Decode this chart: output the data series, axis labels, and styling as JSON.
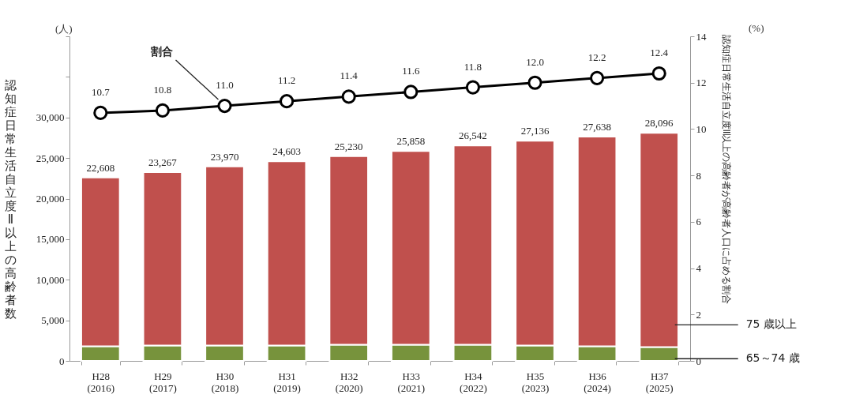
{
  "chart_data": {
    "type": "bar",
    "stacked": true,
    "categories": [
      "H28\n(2016)",
      "H29\n(2017)",
      "H30\n(2018)",
      "H31\n(2019)",
      "H32\n(2020)",
      "H33\n(2021)",
      "H34\n(2022)",
      "H35\n(2023)",
      "H36\n(2024)",
      "H37\n(2025)"
    ],
    "series": [
      {
        "name": "65～74 歳",
        "color": "#77933c",
        "values": [
          1800,
          1900,
          1900,
          1900,
          2000,
          2000,
          2000,
          1900,
          1800,
          1700
        ]
      },
      {
        "name": "75 歳以上",
        "color": "#c0504d",
        "values": [
          20808,
          21367,
          22070,
          22703,
          23230,
          23858,
          24542,
          25236,
          25838,
          26396
        ]
      },
      {
        "name": "割合",
        "type": "line",
        "axis": "y2",
        "color": "#000000",
        "marker": "circle",
        "values": [
          10.7,
          10.8,
          11.0,
          11.2,
          11.4,
          11.6,
          11.8,
          12.0,
          12.2,
          12.4
        ],
        "value_labels": [
          "10.7",
          "10.8",
          "11.0",
          "11.2",
          "11.4",
          "11.6",
          "11.8",
          "12.0",
          "12.2",
          "12.4"
        ]
      }
    ],
    "totals": [
      "22,608",
      "23,267",
      "23,970",
      "24,603",
      "25,230",
      "25,858",
      "26,542",
      "27,136",
      "27,638",
      "28,096"
    ],
    "ylabel": "認知症日常生活自立度Ⅱ以上の高齢者数",
    "y2label": "認知症日常生活自立度Ⅱ以上の高齢者が高齢者人口に占める割合",
    "ylim": [
      0,
      40000
    ],
    "yticks": [
      0,
      {
        "value": 5000,
        "label": "5,000"
      },
      {
        "value": 10000,
        "label": "10,000"
      },
      {
        "value": 15000,
        "label": "15,000"
      },
      {
        "value": 20000,
        "label": "20,000"
      },
      {
        "value": 25000,
        "label": "25,000"
      },
      {
        "value": 30000,
        "label": "30,000"
      },
      {
        "value": 35000,
        "label": null
      },
      {
        "value": 40000,
        "label": null
      }
    ],
    "y2lim": [
      0,
      14
    ],
    "y2ticks": [
      0,
      2,
      4,
      6,
      8,
      10,
      12,
      14
    ],
    "annotations": [
      "(人)",
      "(%)"
    ],
    "grid": false
  }
}
